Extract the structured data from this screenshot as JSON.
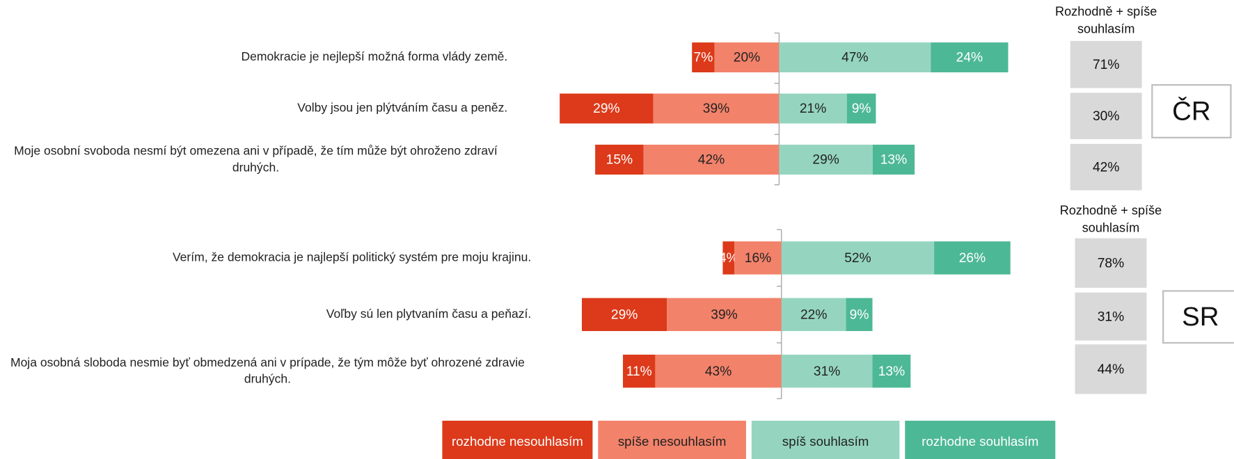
{
  "chart_data": {
    "type": "diverging_bar",
    "categories": [
      "Demokracie je nejlepší možná forma vlády země.",
      "Volby jsou jen plýtváním času a peněz.",
      "Moje osobní svoboda nesmí být omezena ani v případě, že tím může být ohroženo zdraví druhých.",
      "Verím, že demokracia je najlepší politický systém pre moju krajinu.",
      "Voľby sú len plytvaním času a peňazí.",
      "Moja osobná sloboda nesmie byť obmedzená ani v prípade, že tým môže byť ohrozené zdravie druhých."
    ],
    "series": [
      {
        "name": "rozhodne nesouhlasím",
        "color": "#dc3a1a",
        "values": [
          7,
          29,
          15,
          4,
          29,
          11
        ],
        "value_labels": [
          "7%",
          "29%",
          "15%",
          "4%",
          "29%",
          "11%"
        ]
      },
      {
        "name": "spíše nesouhlasím",
        "color": "#f2826a",
        "values": [
          20,
          39,
          42,
          16,
          39,
          43
        ],
        "value_labels": [
          "20%",
          "39%",
          "42%",
          "16%",
          "39%",
          "43%"
        ]
      },
      {
        "name": "spíš souhlasím",
        "color": "#95d5c0",
        "values": [
          47,
          21,
          29,
          52,
          22,
          31
        ],
        "value_labels": [
          "47%",
          "21%",
          "29%",
          "52%",
          "22%",
          "31%"
        ]
      },
      {
        "name": "rozhodne souhlasím",
        "color": "#4db895",
        "values": [
          24,
          9,
          13,
          26,
          9,
          13
        ],
        "value_labels": [
          "24%",
          "9%",
          "13%",
          "26%",
          "9%",
          "13%"
        ]
      }
    ],
    "panels": [
      {
        "label": "ČR",
        "summary": {
          "title": "Rozhodně + spíše souhlasím",
          "values": [
            71,
            30,
            42
          ],
          "value_labels": [
            "71%",
            "30%",
            "42%"
          ]
        }
      },
      {
        "label": "SR",
        "summary": {
          "title": "Rozhodně + spíše souhlasím",
          "values": [
            78,
            31,
            44
          ],
          "value_labels": [
            "78%",
            "31%",
            "44%"
          ]
        }
      }
    ]
  }
}
